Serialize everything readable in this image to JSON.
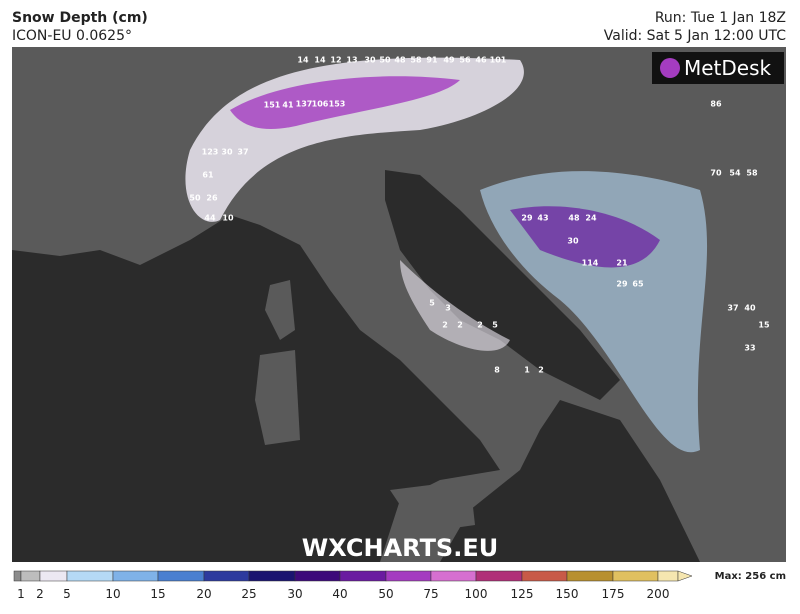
{
  "header": {
    "title": "Snow Depth (cm)",
    "model": "ICON-EU 0.0625°",
    "run": "Run: Tue 1 Jan 18Z",
    "valid": "Valid: Sat 5 Jan 12:00 UTC"
  },
  "logo": "MetDesk",
  "watermark": "WXCHARTS.EU",
  "map_labels": [
    "14",
    "14",
    "12",
    "13",
    "30",
    "50",
    "48",
    "58",
    "91",
    "49",
    "56",
    "46",
    "101",
    "151",
    "41",
    "137",
    "106",
    "153",
    "123",
    "30",
    "37",
    "61",
    "50",
    "26",
    "44",
    "10",
    "29",
    "43",
    "48",
    "24",
    "30",
    "114",
    "21",
    "29",
    "65",
    "86",
    "70",
    "54",
    "58",
    "33",
    "37",
    "40",
    "15",
    "5",
    "3",
    "2",
    "2",
    "5",
    "2",
    "8",
    "1",
    "2"
  ],
  "legend": {
    "ticks": [
      1,
      2,
      5,
      10,
      15,
      20,
      25,
      30,
      40,
      50,
      75,
      100,
      125,
      150,
      175,
      200
    ],
    "colors": [
      "#8c8c8c",
      "#bdbdbd",
      "#ece8f2",
      "#b5d9f5",
      "#7fb2e8",
      "#4a7fd0",
      "#2d3a9e",
      "#1a1470",
      "#3d0a7a",
      "#6a1ba0",
      "#a43cc0",
      "#d66fd0",
      "#b03078",
      "#c85a48",
      "#b89030",
      "#e0c060",
      "#f5e6b0"
    ],
    "max_label": "Max: 256 cm"
  }
}
